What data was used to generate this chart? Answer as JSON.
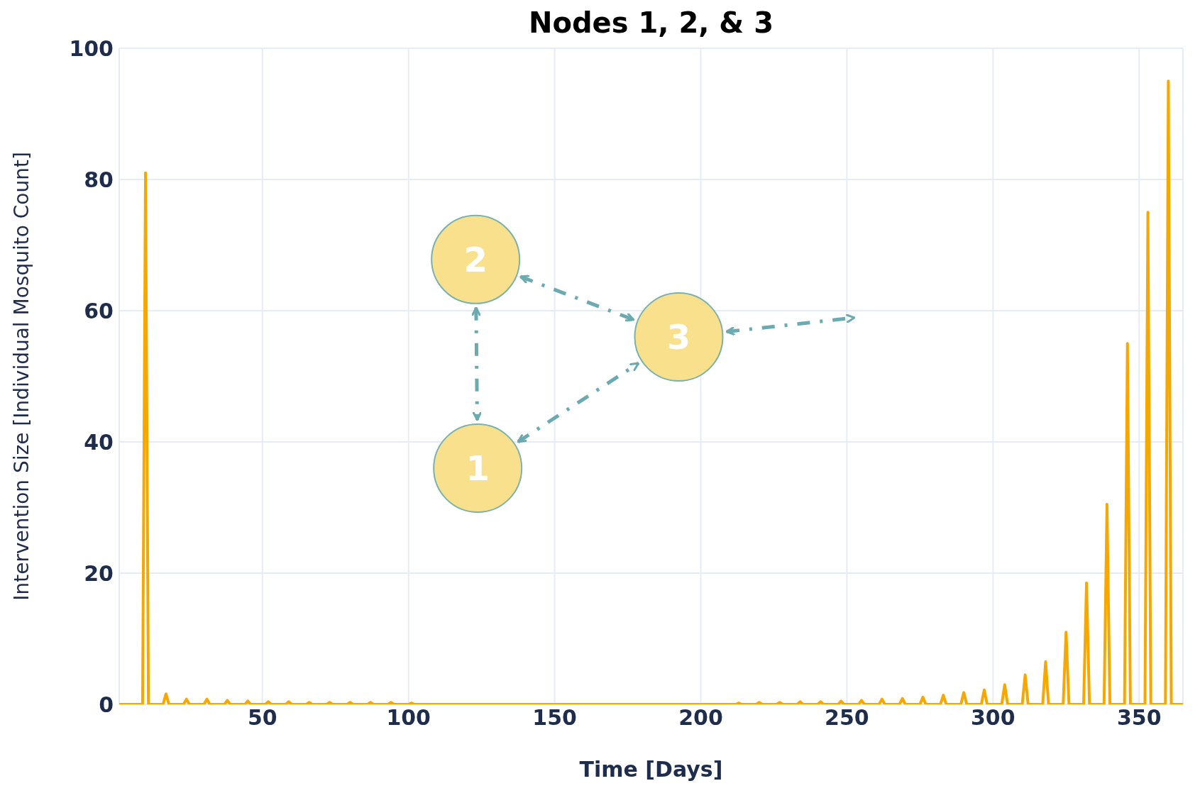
{
  "chart_data": {
    "type": "line",
    "title": "Nodes 1, 2, & 3",
    "xlabel": "Time [Days]",
    "ylabel": "Intervention Size [Individual Mosquito Count]",
    "x": [
      1,
      9,
      10,
      11,
      16,
      17,
      18,
      23,
      24,
      25,
      30,
      31,
      32,
      37,
      38,
      39,
      44,
      45,
      46,
      51,
      52,
      53,
      58,
      59,
      60,
      65,
      66,
      67,
      72,
      73,
      74,
      79,
      80,
      81,
      86,
      87,
      88,
      93,
      94,
      95,
      100,
      101,
      102,
      212,
      213,
      214,
      219,
      220,
      221,
      226,
      227,
      228,
      233,
      234,
      235,
      240,
      241,
      242,
      247,
      248,
      249,
      254,
      255,
      256,
      261,
      262,
      263,
      268,
      269,
      270,
      275,
      276,
      277,
      282,
      283,
      284,
      289,
      290,
      291,
      296,
      297,
      298,
      303,
      304,
      305,
      310,
      311,
      312,
      317,
      318,
      319,
      324,
      325,
      326,
      331,
      332,
      333,
      338,
      339,
      340,
      345,
      346,
      347,
      352,
      353,
      354,
      359,
      360,
      361,
      365
    ],
    "series": [
      {
        "color": "#f7a800",
        "values": [
          0,
          0,
          81,
          0,
          0,
          1.6,
          0,
          0,
          0.8,
          0,
          0,
          0.8,
          0,
          0,
          0.6,
          0,
          0,
          0.5,
          0,
          0,
          0.4,
          0,
          0,
          0.4,
          0,
          0,
          0.3,
          0,
          0,
          0.3,
          0,
          0,
          0.3,
          0,
          0,
          0.3,
          0,
          0,
          0.3,
          0,
          0,
          0.2,
          0,
          0,
          0.2,
          0,
          0,
          0.3,
          0,
          0,
          0.3,
          0,
          0,
          0.4,
          0,
          0,
          0.4,
          0,
          0,
          0.5,
          0,
          0,
          0.6,
          0,
          0,
          0.8,
          0,
          0,
          0.9,
          0,
          0,
          1.1,
          0,
          0,
          1.4,
          0,
          0,
          1.8,
          0,
          0,
          2.2,
          0,
          0,
          3,
          0,
          0,
          4.5,
          0,
          0,
          6.5,
          0,
          0,
          11,
          0,
          0,
          18.5,
          0,
          0,
          30.5,
          0,
          0,
          55,
          0,
          0,
          75,
          0,
          0,
          95,
          0,
          0
        ]
      }
    ],
    "xlim": [
      1,
      365
    ],
    "xticks": [
      50,
      100,
      150,
      200,
      250,
      300,
      350
    ],
    "ylim": [
      0,
      100
    ],
    "yticks": [
      0,
      20,
      40,
      60,
      80,
      100
    ],
    "grid": true,
    "marker": "none",
    "line_style": "solid",
    "annotations": [
      "1",
      "2",
      "3"
    ]
  }
}
